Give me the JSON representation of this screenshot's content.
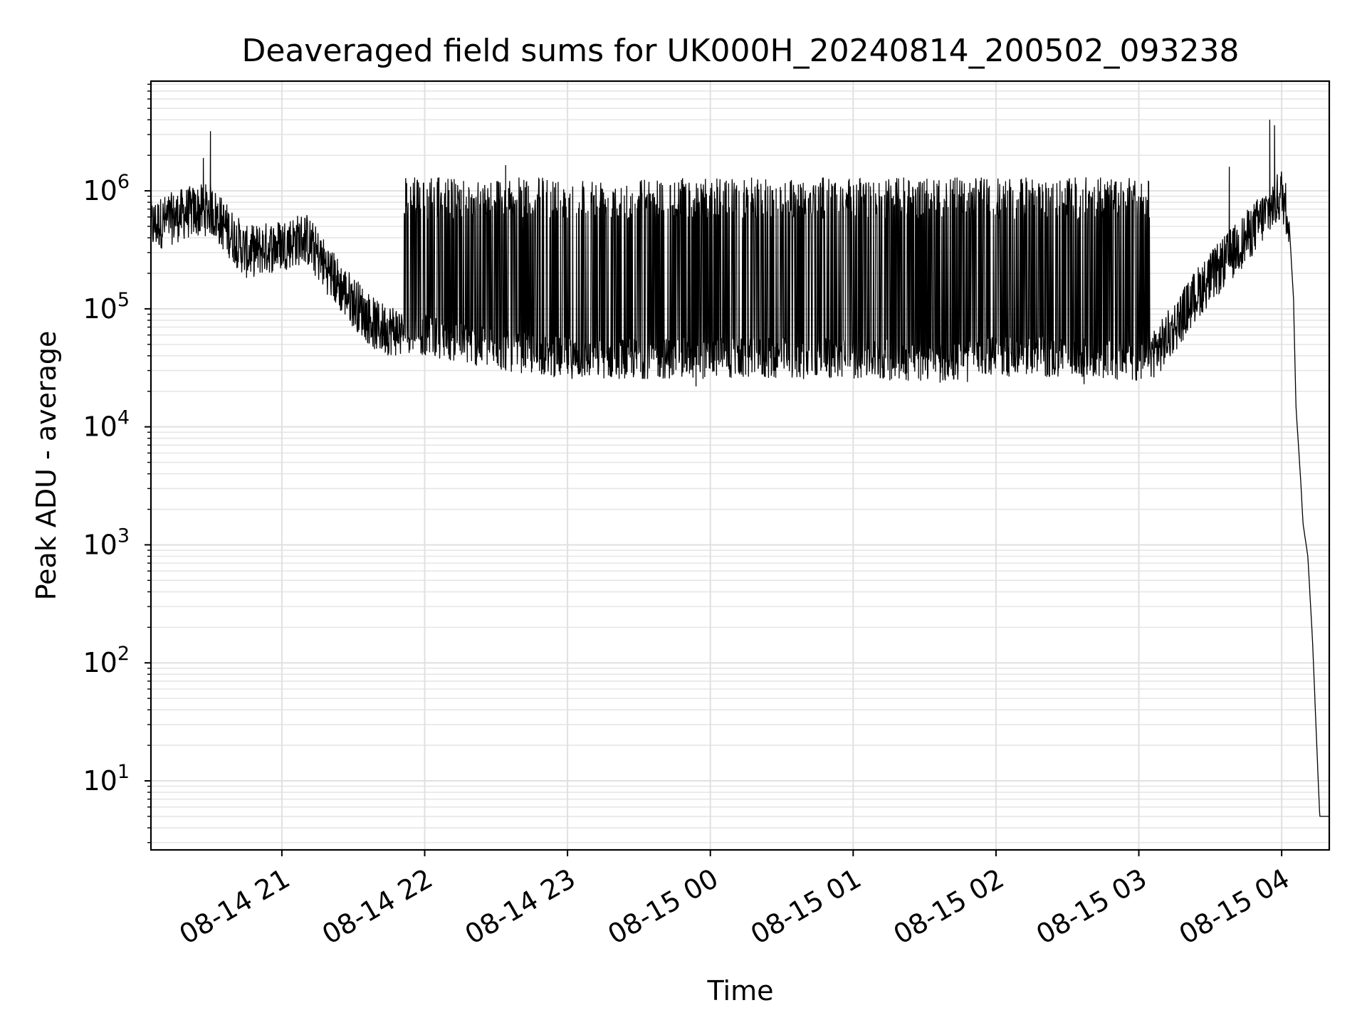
{
  "chart_data": {
    "type": "line",
    "title": "Deaveraged field sums for UK000H_20240814_200502_093238",
    "xlabel": "Time",
    "ylabel": "Peak ADU - average",
    "yscale": "log",
    "grid": true,
    "legend": "none",
    "x_range": [
      "2024-08-14 20:05",
      "2024-08-15 04:20"
    ],
    "y_range": [
      2.6,
      8500000
    ],
    "x_ticks": [
      "08-14 21",
      "08-14 22",
      "08-14 23",
      "08-15 00",
      "08-15 01",
      "08-15 02",
      "08-15 03",
      "08-15 04"
    ],
    "x_tick_times": [
      "2024-08-14 21:00",
      "2024-08-14 22:00",
      "2024-08-14 23:00",
      "2024-08-15 00:00",
      "2024-08-15 01:00",
      "2024-08-15 02:00",
      "2024-08-15 03:00",
      "2024-08-15 04:00"
    ],
    "y_ticks": [
      {
        "base": "10",
        "exp": "1",
        "value": 10
      },
      {
        "base": "10",
        "exp": "2",
        "value": 100
      },
      {
        "base": "10",
        "exp": "3",
        "value": 1000
      },
      {
        "base": "10",
        "exp": "4",
        "value": 10000
      },
      {
        "base": "10",
        "exp": "5",
        "value": 100000
      },
      {
        "base": "10",
        "exp": "6",
        "value": 1000000
      }
    ],
    "series": [
      {
        "color": "#000000",
        "baseline_x": [
          "2024-08-14 20:05",
          "2024-08-14 20:20",
          "2024-08-14 20:30",
          "2024-08-14 20:45",
          "2024-08-14 21:00",
          "2024-08-14 21:10",
          "2024-08-14 21:25",
          "2024-08-14 21:40",
          "2024-08-14 22:00",
          "2024-08-14 22:30",
          "2024-08-14 23:00",
          "2024-08-15 00:00",
          "2024-08-15 01:00",
          "2024-08-15 01:40",
          "2024-08-15 02:00",
          "2024-08-15 02:40",
          "2024-08-15 03:00",
          "2024-08-15 03:10",
          "2024-08-15 03:25",
          "2024-08-15 03:45",
          "2024-08-15 03:55",
          "2024-08-15 04:00",
          "2024-08-15 04:03",
          "2024-08-15 04:05",
          "2024-08-15 04:06",
          "2024-08-15 04:08",
          "2024-08-15 04:09",
          "2024-08-15 04:11",
          "2024-08-15 04:13",
          "2024-08-15 04:15",
          "2024-08-15 04:16",
          "2024-08-15 04:20"
        ],
        "baseline_y": [
          500000,
          650000,
          700000,
          300000,
          350000,
          400000,
          150000,
          70000,
          60000,
          45000,
          38000,
          38000,
          38000,
          35000,
          40000,
          38000,
          35000,
          50000,
          140000,
          400000,
          700000,
          950000,
          600000,
          120000,
          15000,
          3500,
          1500,
          800,
          150,
          15,
          5,
          5
        ],
        "spike_peak": 1300000,
        "outliers": [
          {
            "x": "2024-08-14 20:30",
            "y": 3200000
          },
          {
            "x": "2024-08-14 20:27",
            "y": 1900000
          },
          {
            "x": "2024-08-14 21:45",
            "y": 45000
          },
          {
            "x": "2024-08-14 22:34",
            "y": 1650000
          },
          {
            "x": "2024-08-14 23:54",
            "y": 22000
          },
          {
            "x": "2024-08-15 01:48",
            "y": 24000
          },
          {
            "x": "2024-08-15 02:37",
            "y": 23000
          },
          {
            "x": "2024-08-15 03:38",
            "y": 1600000
          },
          {
            "x": "2024-08-15 03:55",
            "y": 4000000
          },
          {
            "x": "2024-08-15 03:57",
            "y": 3600000
          }
        ]
      }
    ]
  }
}
